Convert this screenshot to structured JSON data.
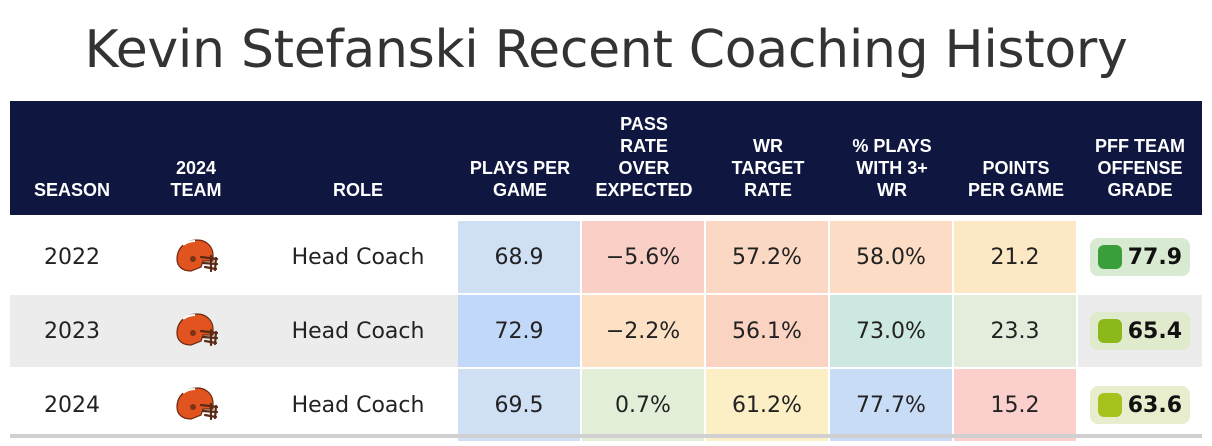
{
  "title": "Kevin Stefanski Recent Coaching History",
  "columns": [
    {
      "key": "season",
      "label_lines": [
        "SEASON"
      ]
    },
    {
      "key": "team",
      "label_lines": [
        "2024",
        "TEAM"
      ]
    },
    {
      "key": "role",
      "label_lines": [
        "ROLE"
      ]
    },
    {
      "key": "plays",
      "label_lines": [
        "PLAYS PER",
        "GAME"
      ]
    },
    {
      "key": "proe",
      "label_lines": [
        "PASS",
        "RATE",
        "OVER",
        "EXPECTED"
      ]
    },
    {
      "key": "wr_target",
      "label_lines": [
        "WR",
        "TARGET",
        "RATE"
      ]
    },
    {
      "key": "pct_3wr",
      "label_lines": [
        "% PLAYS",
        "WITH 3+",
        "WR"
      ]
    },
    {
      "key": "ppg",
      "label_lines": [
        "POINTS",
        "PER GAME"
      ]
    },
    {
      "key": "pff",
      "label_lines": [
        "PFF TEAM",
        "OFFENSE",
        "GRADE"
      ]
    }
  ],
  "rows": [
    {
      "season": "2022",
      "team_icon": "browns-helmet-icon",
      "role": "Head Coach",
      "plays": "68.9",
      "proe": "−5.6%",
      "wr_target": "57.2%",
      "pct_3wr": "58.0%",
      "ppg": "21.2",
      "pff": "77.9",
      "colors": {
        "plays": "#cfdff4",
        "proe": "#f9cfc6",
        "wr_target": "#fbd8c3",
        "pct_3wr": "#fcdcc4",
        "ppg": "#fde8c6"
      },
      "pff_box_color": "#d9ead2",
      "pff_dot_color": "#3a9e3a"
    },
    {
      "season": "2023",
      "team_icon": "browns-helmet-icon",
      "role": "Head Coach",
      "plays": "72.9",
      "proe": "−2.2%",
      "wr_target": "56.1%",
      "pct_3wr": "73.0%",
      "ppg": "23.3",
      "pff": "65.4",
      "colors": {
        "plays": "#c2d8f8",
        "proe": "#fde1c4",
        "wr_target": "#fbd3c3",
        "pct_3wr": "#cde8e0",
        "ppg": "#e4eddc"
      },
      "pff_box_color": "#e0ebcd",
      "pff_dot_color": "#8cb81c"
    },
    {
      "season": "2024",
      "team_icon": "browns-helmet-icon",
      "role": "Head Coach",
      "plays": "69.5",
      "proe": "0.7%",
      "wr_target": "61.2%",
      "pct_3wr": "77.7%",
      "ppg": "15.2",
      "pff": "63.6",
      "colors": {
        "plays": "#cfdff4",
        "proe": "#e3eed9",
        "wr_target": "#fcefc6",
        "pct_3wr": "#c9dcf6",
        "ppg": "#fbcfcb"
      },
      "pff_box_color": "#e8eecd",
      "pff_dot_color": "#a6c21c"
    }
  ]
}
